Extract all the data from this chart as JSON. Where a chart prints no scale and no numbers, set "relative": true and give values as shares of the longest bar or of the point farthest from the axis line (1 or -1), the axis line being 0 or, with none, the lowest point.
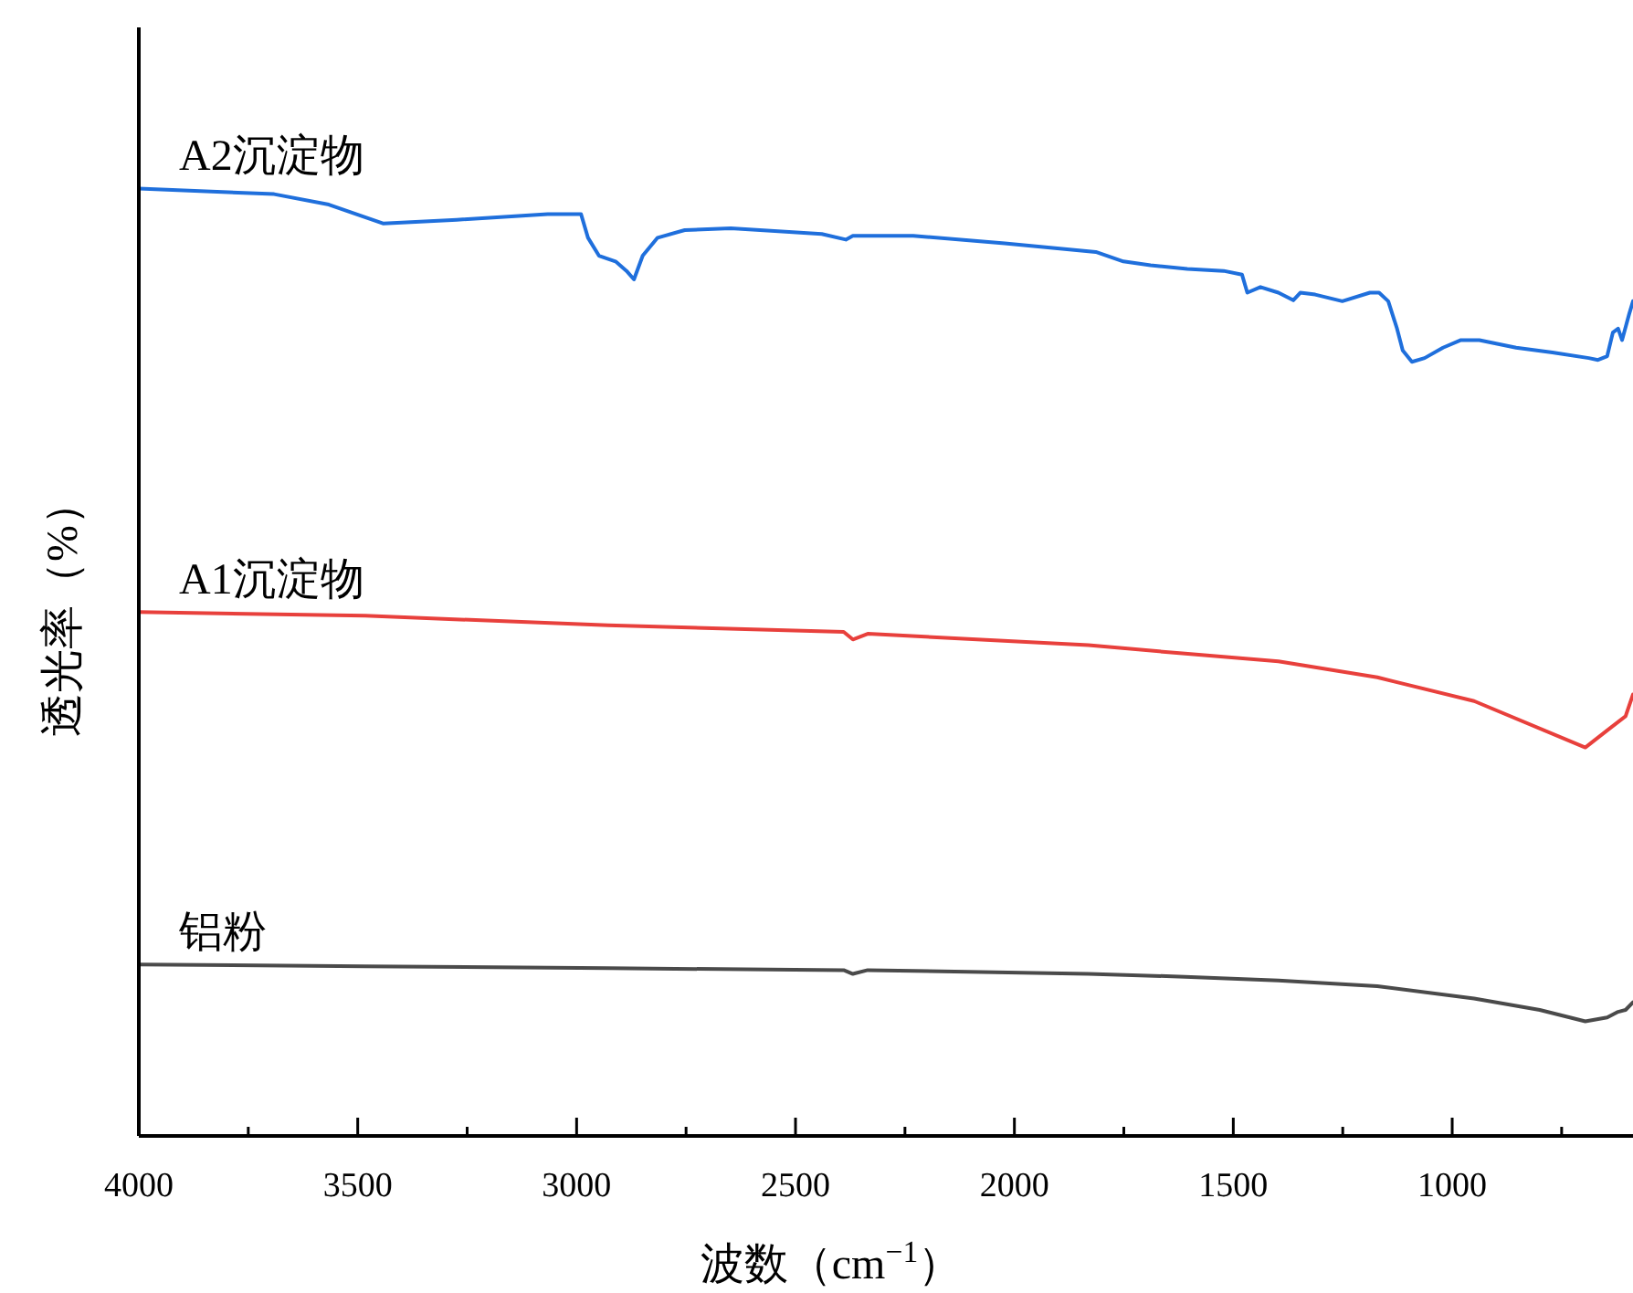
{
  "chart_data": {
    "type": "line",
    "relative": true,
    "xlabel": "波数（cm$^{−1}$）",
    "ylabel": "透光率（%）",
    "xlim": [
      4000,
      587
    ],
    "xticks": [
      4000,
      {
        "value": 3750,
        "label": null
      },
      3500,
      {
        "value": 3250,
        "label": null
      },
      3000,
      {
        "value": 2750,
        "label": null
      },
      2500,
      {
        "value": 2250,
        "label": null
      },
      2000,
      {
        "value": 1750,
        "label": null
      },
      1500,
      {
        "value": 1250,
        "label": null
      },
      1000,
      {
        "value": 750,
        "label": null
      }
    ],
    "tick_labels": "x",
    "series": [
      {
        "name": "A2沉淀物",
        "color": "#1f6fdc",
        "x": [
          4000,
          3691,
          3566,
          3441,
          3274,
          3066,
          2990,
          2974,
          2949,
          2911,
          2886,
          2869,
          2849,
          2815,
          2753,
          2648,
          2440,
          2385,
          2369,
          2231,
          2022,
          1814,
          1751,
          1689,
          1605,
          1522,
          1480,
          1468,
          1438,
          1397,
          1363,
          1347,
          1313,
          1251,
          1188,
          1167,
          1146,
          1126,
          1113,
          1092,
          1063,
          1021,
          980,
          938,
          854,
          771,
          688,
          667,
          646,
          633,
          621,
          612,
          596,
          587
        ],
        "values": [
          1.0,
          0.994,
          0.983,
          0.963,
          0.967,
          0.973,
          0.973,
          0.948,
          0.929,
          0.923,
          0.913,
          0.904,
          0.929,
          0.948,
          0.956,
          0.958,
          0.952,
          0.946,
          0.95,
          0.95,
          0.942,
          0.933,
          0.923,
          0.919,
          0.915,
          0.913,
          0.909,
          0.89,
          0.896,
          0.89,
          0.882,
          0.89,
          0.888,
          0.881,
          0.89,
          0.89,
          0.881,
          0.852,
          0.829,
          0.817,
          0.821,
          0.832,
          0.84,
          0.84,
          0.832,
          0.827,
          0.821,
          0.819,
          0.823,
          0.848,
          0.852,
          0.84,
          0.867,
          0.881
        ]
      },
      {
        "name": "A1沉淀物",
        "color": "#e8403c",
        "x": [
          4000,
          3483,
          2928,
          2390,
          2369,
          2335,
          1831,
          1610,
          1397,
          1171,
          950,
          696,
          646,
          621,
          604,
          587
        ],
        "values": [
          0.553,
          0.549,
          0.539,
          0.532,
          0.524,
          0.53,
          0.518,
          0.509,
          0.501,
          0.484,
          0.459,
          0.41,
          0.428,
          0.437,
          0.443,
          0.466
        ]
      },
      {
        "name": "铝粉",
        "color": "#4a4a4a",
        "x": [
          4000,
          3483,
          2928,
          2390,
          2369,
          2335,
          1831,
          1610,
          1397,
          1171,
          950,
          800,
          696,
          646,
          621,
          604,
          587
        ],
        "values": [
          0.181,
          0.179,
          0.177,
          0.175,
          0.171,
          0.175,
          0.171,
          0.168,
          0.164,
          0.158,
          0.145,
          0.133,
          0.121,
          0.125,
          0.131,
          0.133,
          0.141
        ]
      }
    ]
  }
}
